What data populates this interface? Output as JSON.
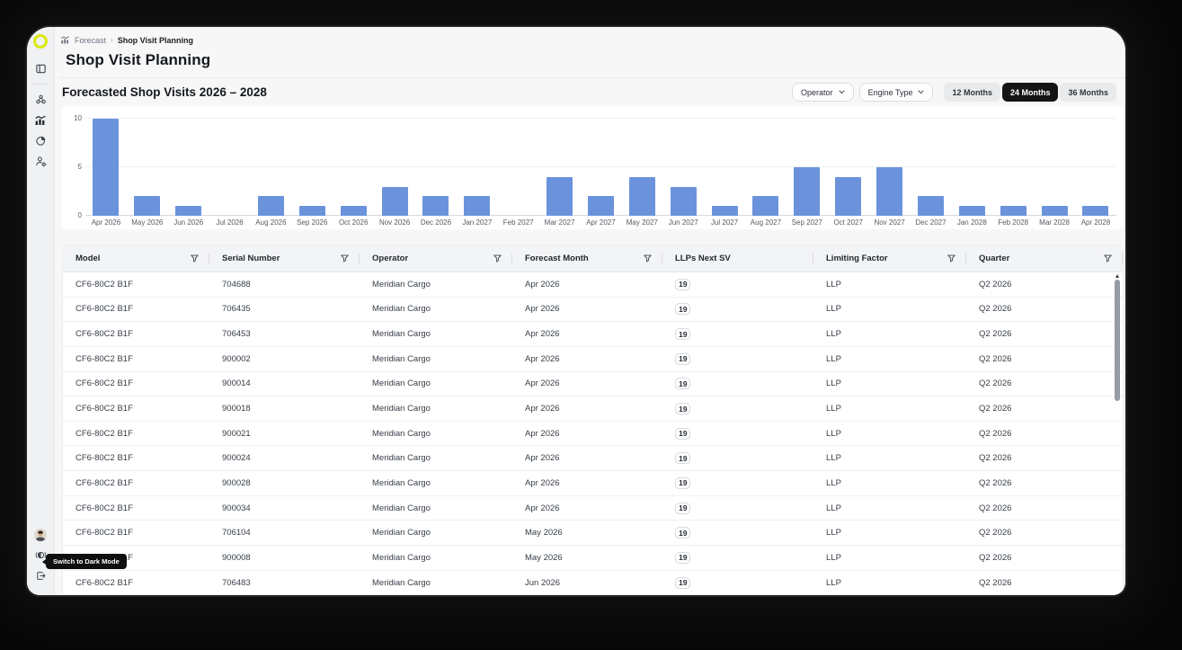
{
  "breadcrumb": {
    "section": "Forecast",
    "page": "Shop Visit Planning",
    "separator": "›"
  },
  "page": {
    "title": "Shop Visit Planning"
  },
  "section": {
    "title": "Forecasted Shop Visits 2026 – 2028"
  },
  "filters": {
    "operator": {
      "label": "Operator"
    },
    "engine_type": {
      "label": "Engine Type"
    },
    "range": {
      "options": [
        "12 Months",
        "24 Months",
        "36 Months"
      ],
      "selected": "24 Months"
    }
  },
  "chart_data": {
    "type": "bar",
    "title": "Forecasted Shop Visits 2026 – 2028",
    "categories": [
      "Apr 2026",
      "May 2026",
      "Jun 2026",
      "Jul 2026",
      "Aug 2026",
      "Sep 2026",
      "Oct 2026",
      "Nov 2026",
      "Dec 2026",
      "Jan 2027",
      "Feb 2027",
      "Mar 2027",
      "Apr 2027",
      "May 2027",
      "Jun 2027",
      "Jul 2027",
      "Aug 2027",
      "Sep 2027",
      "Oct 2027",
      "Nov 2027",
      "Dec 2027",
      "Jan 2028",
      "Feb 2028",
      "Mar 2028",
      "Apr 2028"
    ],
    "values": [
      10,
      2,
      1,
      0,
      2,
      1,
      1,
      3,
      2,
      2,
      0,
      4,
      2,
      4,
      3,
      1,
      2,
      5,
      4,
      5,
      2,
      1,
      1,
      1,
      1
    ],
    "xlabel": "",
    "ylabel": "",
    "ylim": [
      0,
      10
    ],
    "yticks": [
      0,
      5,
      10
    ],
    "grid": true,
    "legend": "none",
    "bar_color": "#6b93dc"
  },
  "table": {
    "columns": [
      {
        "key": "model",
        "label": "Model",
        "filter": true
      },
      {
        "key": "serial-number",
        "label": "Serial Number",
        "filter": true
      },
      {
        "key": "operator",
        "label": "Operator",
        "filter": true
      },
      {
        "key": "forecast-month",
        "label": "Forecast Month",
        "filter": true
      },
      {
        "key": "llps-next-sv",
        "label": "LLPs Next SV",
        "filter": false
      },
      {
        "key": "limiting-factor",
        "label": "Limiting Factor",
        "filter": true
      },
      {
        "key": "quarter",
        "label": "Quarter",
        "filter": true
      }
    ],
    "rows": [
      [
        "CF6-80C2 B1F",
        "704688",
        "Meridian Cargo",
        "Apr 2026",
        "19",
        "LLP",
        "Q2 2026"
      ],
      [
        "CF6-80C2 B1F",
        "706435",
        "Meridian Cargo",
        "Apr 2026",
        "19",
        "LLP",
        "Q2 2026"
      ],
      [
        "CF6-80C2 B1F",
        "706453",
        "Meridian Cargo",
        "Apr 2026",
        "19",
        "LLP",
        "Q2 2026"
      ],
      [
        "CF6-80C2 B1F",
        "900002",
        "Meridian Cargo",
        "Apr 2026",
        "19",
        "LLP",
        "Q2 2026"
      ],
      [
        "CF6-80C2 B1F",
        "900014",
        "Meridian Cargo",
        "Apr 2026",
        "19",
        "LLP",
        "Q2 2026"
      ],
      [
        "CF6-80C2 B1F",
        "900018",
        "Meridian Cargo",
        "Apr 2026",
        "19",
        "LLP",
        "Q2 2026"
      ],
      [
        "CF6-80C2 B1F",
        "900021",
        "Meridian Cargo",
        "Apr 2026",
        "19",
        "LLP",
        "Q2 2026"
      ],
      [
        "CF6-80C2 B1F",
        "900024",
        "Meridian Cargo",
        "Apr 2026",
        "19",
        "LLP",
        "Q2 2026"
      ],
      [
        "CF6-80C2 B1F",
        "900028",
        "Meridian Cargo",
        "Apr 2026",
        "19",
        "LLP",
        "Q2 2026"
      ],
      [
        "CF6-80C2 B1F",
        "900034",
        "Meridian Cargo",
        "Apr 2026",
        "19",
        "LLP",
        "Q2 2026"
      ],
      [
        "CF6-80C2 B1F",
        "706104",
        "Meridian Cargo",
        "May 2026",
        "19",
        "LLP",
        "Q2 2026"
      ],
      [
        "CF6-80C2 B1F",
        "900008",
        "Meridian Cargo",
        "May 2026",
        "19",
        "LLP",
        "Q2 2026"
      ],
      [
        "CF6-80C2 B1F",
        "706483",
        "Meridian Cargo",
        "Jun 2026",
        "19",
        "LLP",
        "Q2 2026"
      ]
    ]
  },
  "sidebar": {
    "icons": [
      "panel-toggle-icon",
      "fleet-network-icon",
      "forecast-chart-icon",
      "analytics-pie-icon",
      "user-settings-icon"
    ],
    "active": "forecast-chart-icon",
    "bottom": [
      "avatar",
      "theme-toggle-icon",
      "logout-icon"
    ]
  },
  "tooltip": {
    "text": "Switch to Dark Mode"
  },
  "colors": {
    "accent_logo": "#d9e80c",
    "bar": "#6b93dc",
    "selected_segment_bg": "#141517",
    "window_bg": "#f7f7f8",
    "sidebar_bg": "#f0f1f3",
    "tooltip_bg": "#0e0f11"
  }
}
